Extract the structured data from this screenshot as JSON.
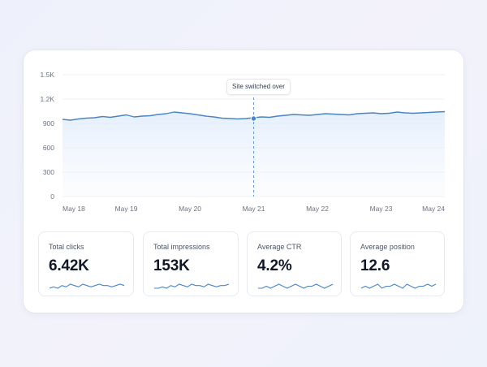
{
  "chart_data": {
    "type": "area",
    "x_labels": [
      "May 18",
      "May 19",
      "May 20",
      "May 21",
      "May 22",
      "May 23",
      "May 24"
    ],
    "y_ticks": [
      "0",
      "300",
      "600",
      "900",
      "1.2K",
      "1.5K"
    ],
    "ylim": [
      0,
      1500
    ],
    "values": [
      950,
      940,
      955,
      965,
      970,
      985,
      975,
      990,
      1005,
      980,
      990,
      995,
      1010,
      1020,
      1040,
      1030,
      1020,
      1005,
      990,
      980,
      965,
      960,
      955,
      960,
      970,
      980,
      975,
      990,
      1000,
      1010,
      1005,
      1000,
      1010,
      1020,
      1015,
      1010,
      1005,
      1020,
      1025,
      1030,
      1020,
      1025,
      1040,
      1030,
      1025,
      1030,
      1035,
      1040,
      1045
    ],
    "annotation": {
      "label": "Site switched over",
      "x_label": "May 21",
      "value": 960
    },
    "grid": true,
    "color": "#4a84c4"
  },
  "metrics": [
    {
      "label": "Total clicks",
      "value": "6.42K",
      "spark": [
        3,
        4,
        3,
        5,
        4,
        6,
        5,
        4,
        6,
        5,
        4,
        5,
        6,
        5,
        5,
        4,
        5,
        6,
        5
      ]
    },
    {
      "label": "Total impressions",
      "value": "153K",
      "spark": [
        3,
        3,
        4,
        3,
        5,
        4,
        6,
        5,
        4,
        6,
        5,
        5,
        4,
        6,
        5,
        4,
        5,
        5,
        6
      ]
    },
    {
      "label": "Average CTR",
      "value": "4.2%",
      "spark": [
        4,
        4,
        5,
        4,
        5,
        6,
        5,
        4,
        5,
        6,
        5,
        4,
        5,
        5,
        6,
        5,
        4,
        5,
        6
      ]
    },
    {
      "label": "Average position",
      "value": "12.6",
      "spark": [
        4,
        5,
        4,
        5,
        6,
        4,
        5,
        5,
        6,
        5,
        4,
        6,
        5,
        4,
        5,
        5,
        6,
        5,
        6
      ]
    }
  ]
}
